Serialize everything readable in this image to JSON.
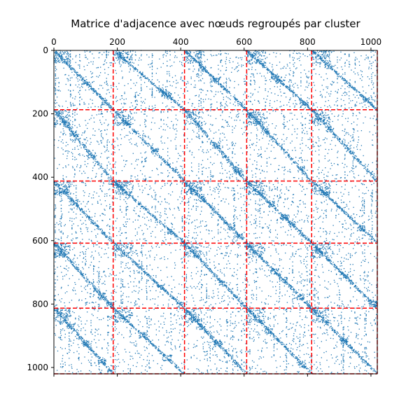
{
  "chart_data": {
    "type": "heatmap",
    "subtype": "adjacency-matrix-spy-plot",
    "title": "Matrice d'adjacence avec nœuds regroupés par cluster",
    "xlabel": "",
    "ylabel": "",
    "x_axis_position": "top",
    "y_axis_inverted": true,
    "xlim": [
      0,
      1020
    ],
    "ylim": [
      1020,
      0
    ],
    "x_ticks": [
      0,
      200,
      400,
      600,
      800,
      1000
    ],
    "y_ticks": [
      0,
      200,
      400,
      600,
      800,
      1000
    ],
    "x_tick_labels": [
      "0",
      "200",
      "400",
      "600",
      "800",
      "1000"
    ],
    "y_tick_labels": [
      "0",
      "200",
      "400",
      "600",
      "800",
      "1000"
    ],
    "n_nodes": 1020,
    "cluster_boundaries": [
      187,
      412,
      608,
      813,
      1020
    ],
    "cluster_separator_style": "dashed",
    "grid": false,
    "legend": "none",
    "marker_color": "#1f77b4",
    "separator_color": "#ff0000"
  }
}
